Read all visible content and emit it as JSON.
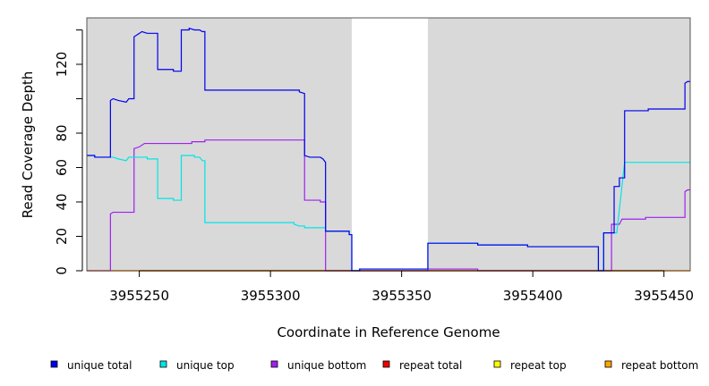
{
  "chart_data": {
    "type": "line",
    "title": "",
    "xlabel": "Coordinate in Reference Genome",
    "ylabel": "Read Coverage Depth",
    "xlim": [
      3955230,
      3955460
    ],
    "ylim": [
      0,
      147
    ],
    "x_ticks": [
      3955250,
      3955300,
      3955350,
      3955400,
      3955450
    ],
    "y_ticks": [
      0,
      20,
      40,
      60,
      80,
      100,
      120,
      140
    ],
    "y_tick_labels": [
      "0",
      "20",
      "40",
      "60",
      "80",
      "",
      "120",
      ""
    ],
    "grid": false,
    "background_regions": [
      {
        "x0": 3955230,
        "x1": 3955331,
        "color": "#d9d9d9"
      },
      {
        "x0": 3955360,
        "x1": 3955460,
        "color": "#d9d9d9"
      }
    ],
    "legend": {
      "position": "bottom",
      "entries": [
        {
          "label": "unique total",
          "color": "#0000ee"
        },
        {
          "label": "unique top",
          "color": "#00e5e5"
        },
        {
          "label": "unique bottom",
          "color": "#a020f0"
        },
        {
          "label": "repeat total",
          "color": "#ee0000"
        },
        {
          "label": "repeat top",
          "color": "#ffff00"
        },
        {
          "label": "repeat bottom",
          "color": "#ffa500"
        }
      ]
    },
    "series": [
      {
        "name": "unique total",
        "color": "#0000ee",
        "points": [
          [
            3955230,
            67
          ],
          [
            3955233,
            67
          ],
          [
            3955233,
            66
          ],
          [
            3955239,
            66
          ],
          [
            3955239,
            99
          ],
          [
            3955240,
            100
          ],
          [
            3955242,
            99
          ],
          [
            3955245,
            98
          ],
          [
            3955246,
            100
          ],
          [
            3955248,
            100
          ],
          [
            3955248,
            136
          ],
          [
            3955249,
            137
          ],
          [
            3955250,
            138
          ],
          [
            3955251,
            139
          ],
          [
            3955253,
            138
          ],
          [
            3955257,
            138
          ],
          [
            3955257,
            117
          ],
          [
            3955263,
            117
          ],
          [
            3955263,
            116
          ],
          [
            3955266,
            116
          ],
          [
            3955266,
            140
          ],
          [
            3955269,
            140
          ],
          [
            3955269,
            141
          ],
          [
            3955271,
            140
          ],
          [
            3955273,
            140
          ],
          [
            3955274,
            139
          ],
          [
            3955275,
            139
          ],
          [
            3955275,
            105
          ],
          [
            3955311,
            105
          ],
          [
            3955311,
            104
          ],
          [
            3955313,
            103
          ],
          [
            3955313,
            67
          ],
          [
            3955315,
            66
          ],
          [
            3955319,
            66
          ],
          [
            3955320,
            65
          ],
          [
            3955321,
            63
          ],
          [
            3955321,
            23
          ],
          [
            3955330,
            23
          ],
          [
            3955330,
            21
          ],
          [
            3955331,
            21
          ],
          [
            3955331,
            0
          ],
          [
            3955334,
            0
          ],
          [
            3955334,
            1
          ],
          [
            3955360,
            1
          ],
          [
            3955360,
            16
          ],
          [
            3955379,
            16
          ],
          [
            3955379,
            15
          ],
          [
            3955398,
            15
          ],
          [
            3955398,
            14
          ],
          [
            3955425,
            14
          ],
          [
            3955425,
            0
          ],
          [
            3955427,
            0
          ],
          [
            3955427,
            22
          ],
          [
            3955431,
            22
          ],
          [
            3955431,
            49
          ],
          [
            3955433,
            49
          ],
          [
            3955433,
            54
          ],
          [
            3955435,
            54
          ],
          [
            3955435,
            93
          ],
          [
            3955444,
            93
          ],
          [
            3955444,
            94
          ],
          [
            3955458,
            94
          ],
          [
            3955458,
            109
          ],
          [
            3955459,
            110
          ],
          [
            3955460,
            110
          ]
        ]
      },
      {
        "name": "unique top",
        "color": "#00e5e5",
        "points": [
          [
            3955230,
            67
          ],
          [
            3955233,
            67
          ],
          [
            3955233,
            66
          ],
          [
            3955239,
            66
          ],
          [
            3955240,
            66
          ],
          [
            3955242,
            65
          ],
          [
            3955245,
            64
          ],
          [
            3955246,
            66
          ],
          [
            3955250,
            66
          ],
          [
            3955253,
            66
          ],
          [
            3955253,
            65
          ],
          [
            3955257,
            65
          ],
          [
            3955257,
            42
          ],
          [
            3955263,
            42
          ],
          [
            3955263,
            41
          ],
          [
            3955266,
            41
          ],
          [
            3955266,
            67
          ],
          [
            3955271,
            67
          ],
          [
            3955271,
            66
          ],
          [
            3955273,
            66
          ],
          [
            3955274,
            64
          ],
          [
            3955275,
            64
          ],
          [
            3955275,
            28
          ],
          [
            3955309,
            28
          ],
          [
            3955309,
            27
          ],
          [
            3955311,
            26
          ],
          [
            3955313,
            26
          ],
          [
            3955313,
            25
          ],
          [
            3955321,
            25
          ],
          [
            3955321,
            23
          ],
          [
            3955330,
            23
          ],
          [
            3955330,
            21
          ],
          [
            3955331,
            21
          ],
          [
            3955331,
            0
          ],
          [
            3955334,
            0
          ],
          [
            3955334,
            1
          ],
          [
            3955360,
            1
          ],
          [
            3955360,
            16
          ],
          [
            3955379,
            16
          ],
          [
            3955379,
            15
          ],
          [
            3955398,
            15
          ],
          [
            3955398,
            14
          ],
          [
            3955425,
            14
          ],
          [
            3955425,
            0
          ],
          [
            3955427,
            0
          ],
          [
            3955427,
            22
          ],
          [
            3955432,
            22
          ],
          [
            3955432,
            22
          ],
          [
            3955435,
            63
          ],
          [
            3955460,
            63
          ]
        ]
      },
      {
        "name": "unique bottom",
        "color": "#a020f0",
        "points": [
          [
            3955230,
            0
          ],
          [
            3955239,
            0
          ],
          [
            3955239,
            33
          ],
          [
            3955240,
            34
          ],
          [
            3955248,
            34
          ],
          [
            3955248,
            71
          ],
          [
            3955250,
            72
          ],
          [
            3955252,
            74
          ],
          [
            3955270,
            74
          ],
          [
            3955270,
            75
          ],
          [
            3955275,
            75
          ],
          [
            3955275,
            76
          ],
          [
            3955313,
            76
          ],
          [
            3955313,
            41
          ],
          [
            3955319,
            41
          ],
          [
            3955319,
            40
          ],
          [
            3955321,
            40
          ],
          [
            3955321,
            0
          ],
          [
            3955360,
            0
          ],
          [
            3955360,
            1
          ],
          [
            3955379,
            1
          ],
          [
            3955379,
            0
          ],
          [
            3955430,
            0
          ],
          [
            3955430,
            27
          ],
          [
            3955433,
            27
          ],
          [
            3955434,
            30
          ],
          [
            3955443,
            30
          ],
          [
            3955443,
            31
          ],
          [
            3955458,
            31
          ],
          [
            3955458,
            46
          ],
          [
            3955459,
            47
          ],
          [
            3955460,
            47
          ]
        ]
      },
      {
        "name": "repeat total",
        "color": "#ee0000",
        "points": [
          [
            3955230,
            0
          ],
          [
            3955460,
            0
          ]
        ]
      },
      {
        "name": "repeat top",
        "color": "#ffff00",
        "points": [
          [
            3955230,
            0
          ],
          [
            3955460,
            0
          ]
        ]
      },
      {
        "name": "repeat bottom",
        "color": "#ffa500",
        "points": [
          [
            3955230,
            0
          ],
          [
            3955460,
            0
          ]
        ]
      }
    ]
  }
}
